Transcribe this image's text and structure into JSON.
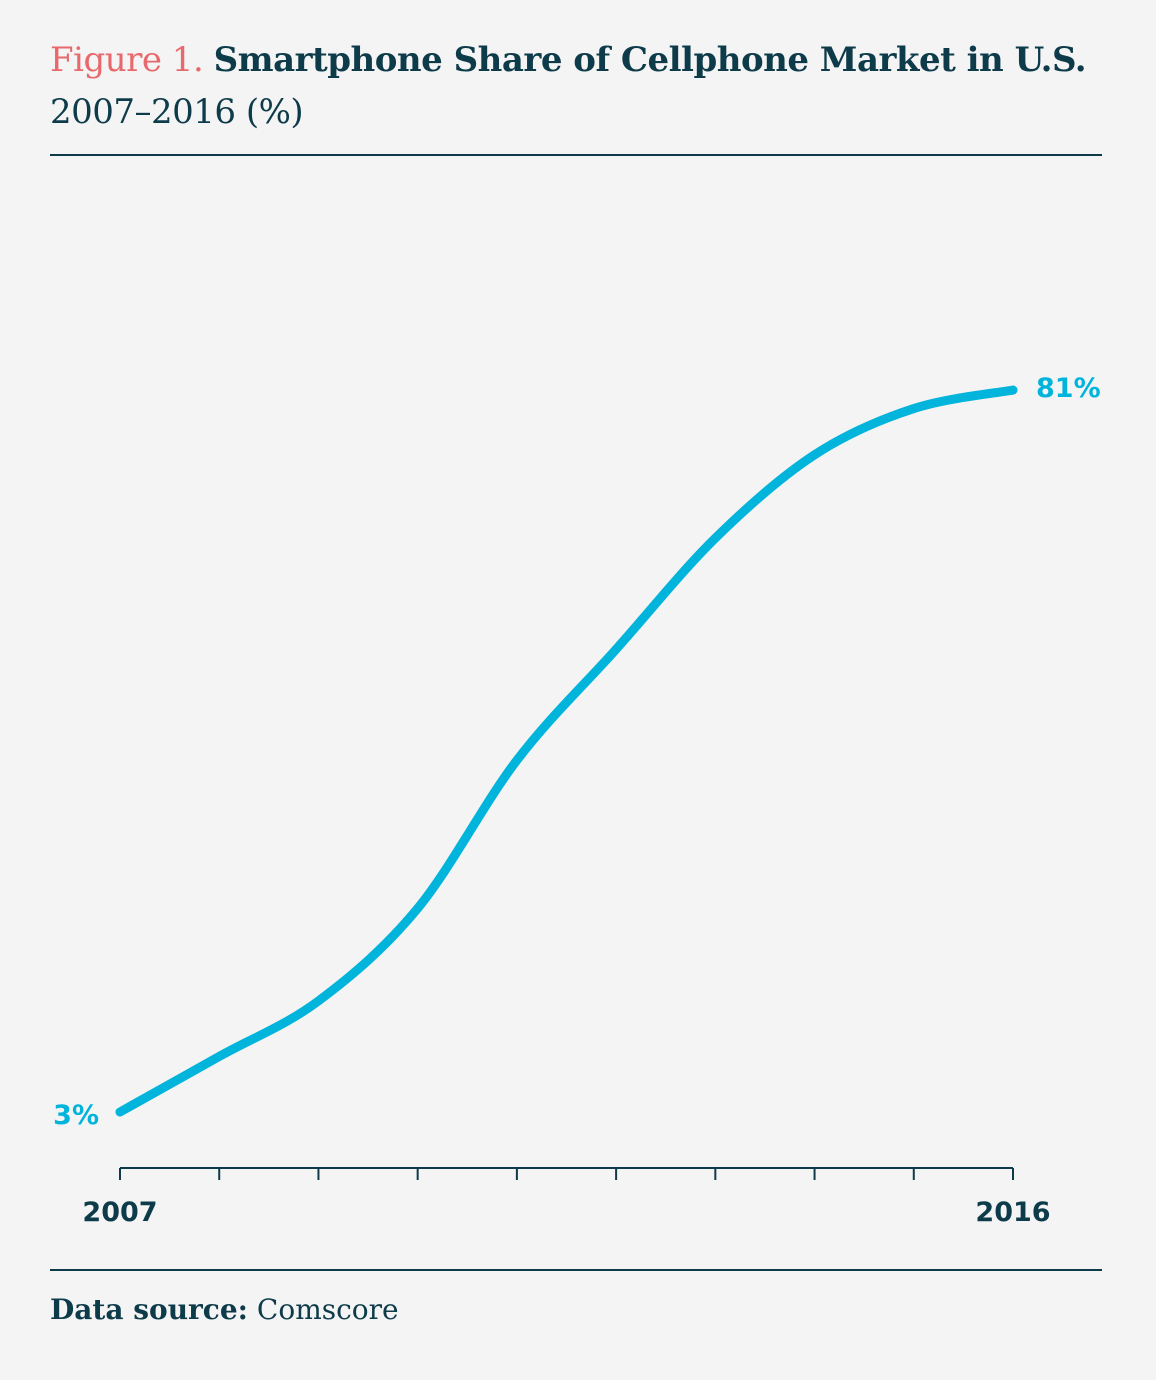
{
  "header": {
    "figure_label": "Figure 1.",
    "title": "Smartphone Share of Cellphone Market in U.S.",
    "subtitle": "2007–2016 (%)"
  },
  "footer": {
    "source_label": "Data source:",
    "source_value": "Comscore"
  },
  "colors": {
    "line": "#00b4dc",
    "text": "#0d3b4a",
    "accent": "#e8696b"
  },
  "chart_data": {
    "type": "line",
    "title": "Smartphone Share of Cellphone Market in U.S. 2007–2016 (%)",
    "xlabel": "",
    "ylabel": "%",
    "x": [
      2007,
      2008,
      2009,
      2010,
      2011,
      2012,
      2013,
      2014,
      2015,
      2016
    ],
    "series": [
      {
        "name": "Smartphone share",
        "values": [
          3,
          9,
          15,
          25,
          41,
          53,
          65,
          74,
          79,
          81
        ]
      }
    ],
    "x_tick_labels": [
      "2007",
      "2016"
    ],
    "data_labels": [
      "3%",
      "81%"
    ],
    "ylim": [
      0,
      100
    ],
    "grid": false
  }
}
